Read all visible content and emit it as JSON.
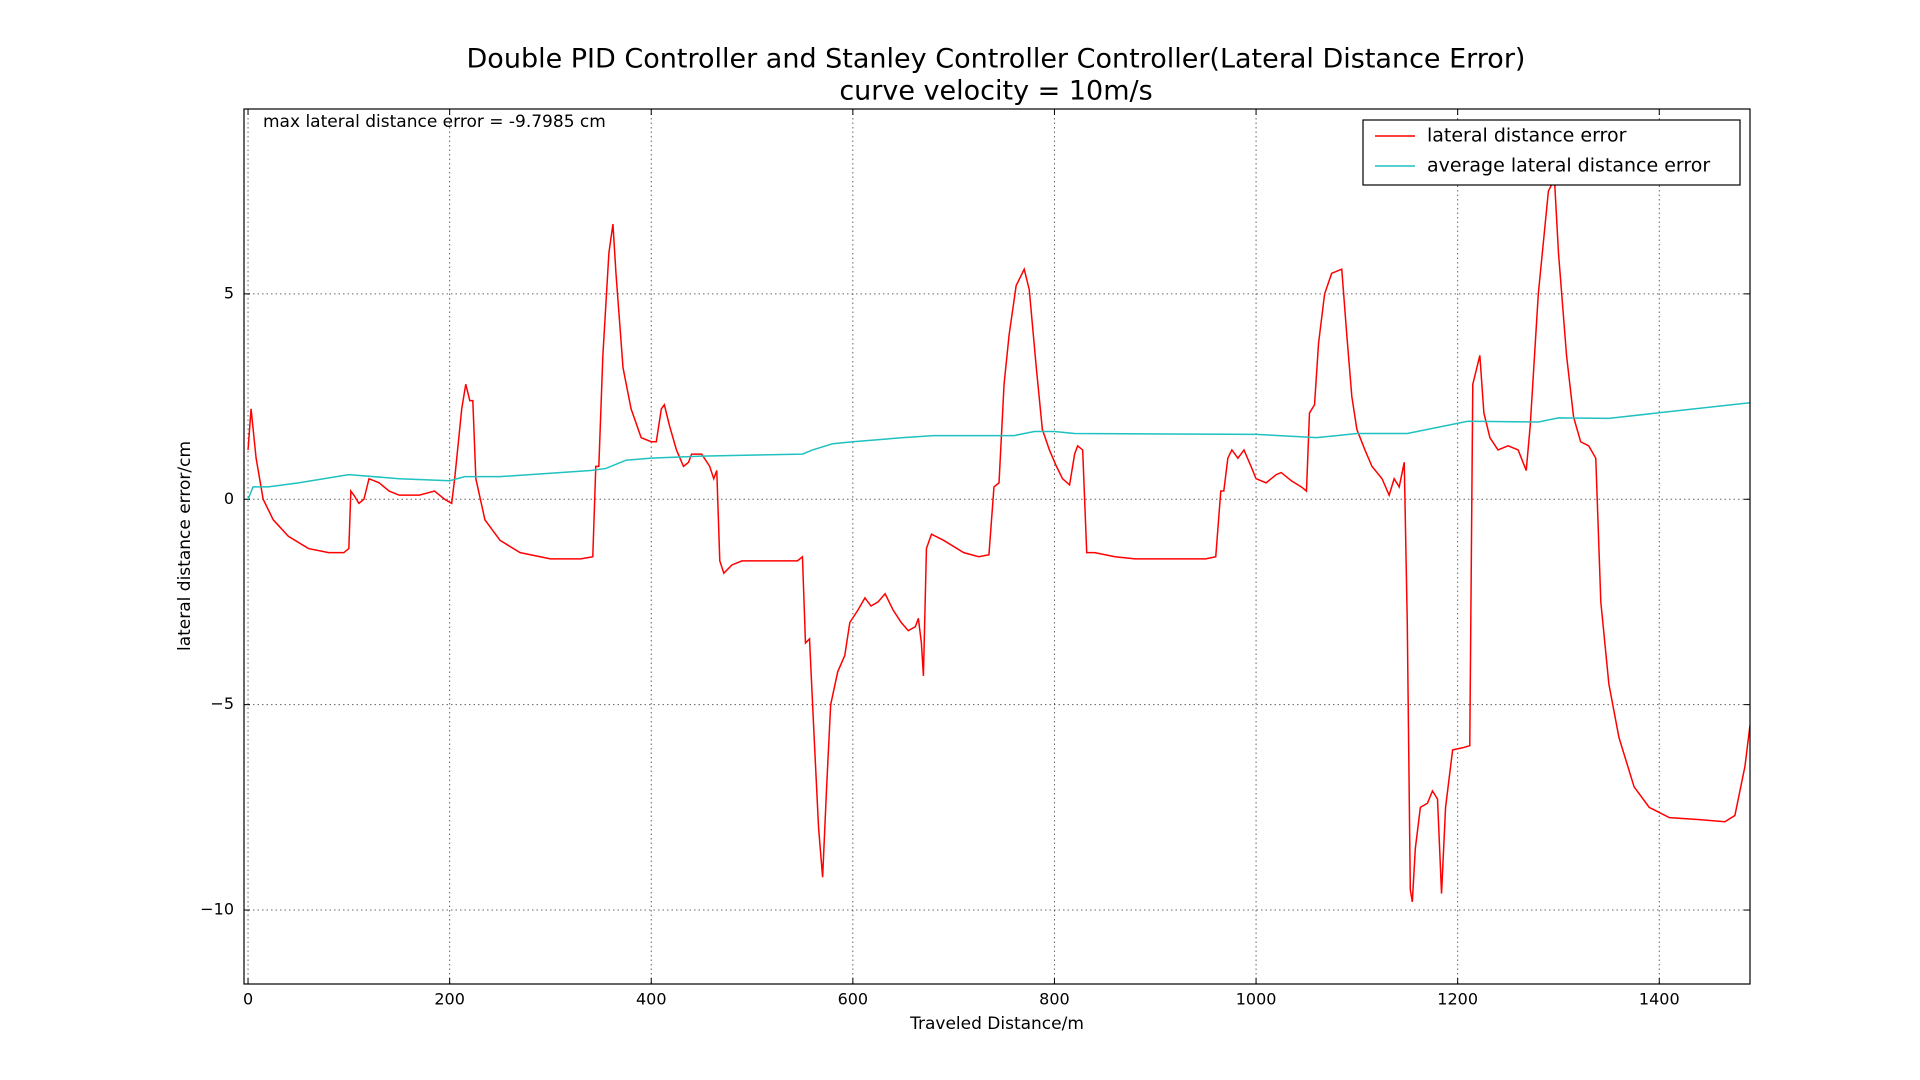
{
  "chart_data": {
    "type": "line",
    "title": "Double PID Controller and Stanley Controller Controller(Lateral Distance Error)",
    "subtitle": "curve velocity = 10m/s",
    "x_label": "Traveled Distance/m",
    "y_label": "lateral distance error/cm",
    "annotation": "max lateral distance error = -9.7985 cm",
    "xlim": [
      -4,
      1490
    ],
    "ylim": [
      -11.8,
      9.5
    ],
    "xticks": [
      0,
      200,
      400,
      600,
      800,
      1000,
      1200,
      1400
    ],
    "yticks": [
      {
        "value": -10,
        "label": "−10"
      },
      {
        "value": -5,
        "label": "−5"
      },
      0,
      5
    ],
    "grid": true,
    "legend": "upper right",
    "series": [
      {
        "name": "lateral distance error",
        "color": "#ff0000",
        "x": [
          0,
          3,
          8,
          15,
          25,
          40,
          60,
          80,
          95,
          100,
          102,
          105,
          110,
          115,
          120,
          130,
          140,
          150,
          170,
          185,
          195,
          202,
          205,
          212,
          216,
          220,
          223,
          226,
          235,
          250,
          270,
          300,
          330,
          342,
          345,
          348,
          352,
          358,
          362,
          365,
          372,
          380,
          390,
          400,
          405,
          410,
          413,
          418,
          425,
          432,
          437,
          440,
          450,
          458,
          462,
          465,
          468,
          472,
          480,
          490,
          520,
          545,
          550,
          553,
          557,
          562,
          566,
          570,
          574,
          578,
          585,
          592,
          597,
          605,
          612,
          618,
          625,
          632,
          640,
          648,
          655,
          662,
          665,
          668,
          670,
          673,
          678,
          690,
          710,
          725,
          735,
          740,
          745,
          750,
          755,
          762,
          770,
          775,
          782,
          788,
          795,
          802,
          808,
          815,
          820,
          823,
          828,
          832,
          840,
          860,
          880,
          920,
          950,
          960,
          965,
          968,
          972,
          976,
          982,
          988,
          995,
          1000,
          1010,
          1020,
          1025,
          1035,
          1045,
          1050,
          1053,
          1058,
          1062,
          1068,
          1075,
          1085,
          1090,
          1095,
          1100,
          1108,
          1115,
          1125,
          1132,
          1137,
          1142,
          1147,
          1150,
          1153,
          1155,
          1158,
          1163,
          1170,
          1175,
          1180,
          1184,
          1188,
          1195,
          1205,
          1212,
          1215,
          1218,
          1222,
          1226,
          1232,
          1240,
          1250,
          1260,
          1268,
          1272,
          1280,
          1290,
          1296,
          1300,
          1308,
          1315,
          1322,
          1330,
          1337,
          1342,
          1350,
          1360,
          1375,
          1390,
          1410,
          1440,
          1465,
          1475,
          1485,
          1490
        ],
        "values": [
          1.2,
          2.2,
          1,
          0,
          -0.5,
          -0.9,
          -1.2,
          -1.3,
          -1.3,
          -1.2,
          0.2,
          0.1,
          -0.1,
          0,
          0.5,
          0.4,
          0.2,
          0.1,
          0.1,
          0.2,
          0,
          -0.1,
          0.5,
          2.2,
          2.8,
          2.4,
          2.4,
          0.5,
          -0.5,
          -1,
          -1.3,
          -1.45,
          -1.45,
          -1.4,
          0.8,
          0.8,
          3.5,
          6,
          6.7,
          5.5,
          3.2,
          2.2,
          1.5,
          1.4,
          1.4,
          2.2,
          2.3,
          1.8,
          1.2,
          0.8,
          0.9,
          1.1,
          1.1,
          0.8,
          0.5,
          0.7,
          -1.5,
          -1.8,
          -1.6,
          -1.5,
          -1.5,
          -1.5,
          -1.4,
          -3.5,
          -3.4,
          -6,
          -8,
          -9.2,
          -7,
          -5,
          -4.2,
          -3.8,
          -3,
          -2.7,
          -2.4,
          -2.6,
          -2.5,
          -2.3,
          -2.7,
          -3,
          -3.2,
          -3.1,
          -2.9,
          -3.5,
          -4.3,
          -1.2,
          -0.85,
          -1,
          -1.3,
          -1.4,
          -1.35,
          0.3,
          0.4,
          2.8,
          4,
          5.2,
          5.6,
          5.1,
          3.2,
          1.7,
          1.2,
          0.8,
          0.5,
          0.35,
          1.1,
          1.3,
          1.2,
          -1.3,
          -1.3,
          -1.4,
          -1.45,
          -1.45,
          -1.45,
          -1.4,
          0.2,
          0.2,
          1,
          1.2,
          1,
          1.2,
          0.8,
          0.5,
          0.4,
          0.6,
          0.65,
          0.45,
          0.3,
          0.2,
          2.1,
          2.3,
          3.8,
          5,
          5.5,
          5.6,
          4,
          2.5,
          1.7,
          1.2,
          0.8,
          0.5,
          0.1,
          0.5,
          0.3,
          0.9,
          -3,
          -9.5,
          -9.8,
          -8.5,
          -7.5,
          -7.4,
          -7.1,
          -7.3,
          -9.6,
          -7.5,
          -6.1,
          -6.05,
          -6,
          2.8,
          3.1,
          3.5,
          2.1,
          1.5,
          1.2,
          1.3,
          1.2,
          0.7,
          1.8,
          5,
          7.5,
          7.8,
          6,
          3.5,
          2,
          1.4,
          1.3,
          1,
          -2.5,
          -4.5,
          -5.8,
          -7,
          -7.5,
          -7.75,
          -7.8,
          -7.85,
          -7.7,
          -6.5,
          -5.5
        ]
      },
      {
        "name": "average lateral distance error",
        "color": "#1fc1c1",
        "x": [
          0,
          5,
          20,
          50,
          100,
          150,
          200,
          215,
          250,
          340,
          355,
          375,
          400,
          450,
          550,
          560,
          580,
          600,
          650,
          680,
          760,
          780,
          800,
          820,
          1000,
          1060,
          1080,
          1100,
          1150,
          1180,
          1210,
          1280,
          1300,
          1350,
          1490
        ],
        "values": [
          0,
          0.3,
          0.3,
          0.4,
          0.6,
          0.5,
          0.45,
          0.55,
          0.55,
          0.7,
          0.75,
          0.95,
          1,
          1.05,
          1.1,
          1.2,
          1.35,
          1.4,
          1.5,
          1.55,
          1.55,
          1.65,
          1.65,
          1.6,
          1.58,
          1.5,
          1.55,
          1.6,
          1.6,
          1.75,
          1.9,
          1.88,
          1.98,
          1.97,
          2.35
        ]
      }
    ]
  }
}
